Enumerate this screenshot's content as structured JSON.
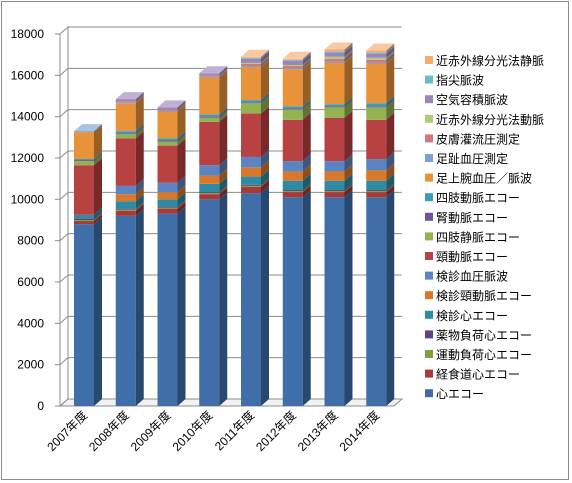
{
  "chart_data": {
    "type": "bar",
    "stacked": true,
    "three_d": true,
    "ylim": [
      0,
      18000
    ],
    "yticks": [
      0,
      2000,
      4000,
      6000,
      8000,
      10000,
      12000,
      14000,
      16000,
      18000
    ],
    "grid": true,
    "legend_position": "right",
    "categories": [
      "2007年度",
      "2008年度",
      "2009年度",
      "2010年度",
      "2011年度",
      "2012年度",
      "2013年度",
      "2014年度"
    ],
    "series": [
      {
        "name": "心エコー",
        "color": "#3f6ea8",
        "values": [
          8800,
          9200,
          9300,
          10000,
          10300,
          10100,
          10100,
          10100
        ]
      },
      {
        "name": "経食道心エコー",
        "color": "#a6393a",
        "values": [
          150,
          250,
          250,
          250,
          300,
          250,
          250,
          250
        ]
      },
      {
        "name": "運動負荷心エコー",
        "color": "#7fa23e",
        "values": [
          50,
          50,
          50,
          50,
          50,
          50,
          50,
          50
        ]
      },
      {
        "name": "薬物負荷心エコー",
        "color": "#5b4683",
        "values": [
          50,
          50,
          50,
          50,
          50,
          50,
          50,
          50
        ]
      },
      {
        "name": "検診心エコー",
        "color": "#2d8ba3",
        "values": [
          200,
          350,
          350,
          400,
          400,
          450,
          450,
          450
        ]
      },
      {
        "name": "検診頸動脈エコー",
        "color": "#d9782c",
        "values": [
          0,
          350,
          350,
          400,
          450,
          450,
          450,
          500
        ]
      },
      {
        "name": "検診血圧脈波",
        "color": "#5c84c2",
        "values": [
          0,
          400,
          450,
          500,
          500,
          500,
          500,
          550
        ]
      },
      {
        "name": "頸動脈エコー",
        "color": "#b84141",
        "values": [
          2400,
          2300,
          1800,
          2100,
          2100,
          2000,
          2100,
          1900
        ]
      },
      {
        "name": "四肢静脈エコー",
        "color": "#92b350",
        "values": [
          200,
          200,
          200,
          200,
          500,
          500,
          500,
          600
        ]
      },
      {
        "name": "腎動脈エコー",
        "color": "#6f549a",
        "values": [
          50,
          50,
          50,
          50,
          50,
          50,
          50,
          50
        ]
      },
      {
        "name": "四肢動脈エコー",
        "color": "#3b9cb5",
        "values": [
          50,
          100,
          100,
          100,
          100,
          100,
          100,
          150
        ]
      },
      {
        "name": "足上腕血圧／脈波",
        "color": "#e8923a",
        "values": [
          1300,
          1350,
          1300,
          1800,
          1600,
          1800,
          2000,
          1900
        ]
      },
      {
        "name": "足趾血圧測定",
        "color": "#7d9fd2",
        "values": [
          50,
          50,
          50,
          50,
          50,
          50,
          50,
          50
        ]
      },
      {
        "name": "皮膚灌流圧測定",
        "color": "#d27a79",
        "values": [
          0,
          50,
          50,
          50,
          100,
          100,
          150,
          150
        ]
      },
      {
        "name": "近赤外線分光法動脈",
        "color": "#aecb7b",
        "values": [
          0,
          0,
          0,
          0,
          50,
          50,
          100,
          100
        ]
      },
      {
        "name": "空気容積脈波",
        "color": "#9c85bd",
        "values": [
          0,
          100,
          100,
          100,
          200,
          200,
          200,
          200
        ]
      },
      {
        "name": "指尖脈波",
        "color": "#69bccf",
        "values": [
          0,
          0,
          0,
          0,
          50,
          50,
          50,
          50
        ]
      },
      {
        "name": "近赤外線分光法静脈",
        "color": "#f4ac70",
        "values": [
          0,
          0,
          0,
          0,
          50,
          50,
          100,
          100
        ]
      }
    ]
  }
}
